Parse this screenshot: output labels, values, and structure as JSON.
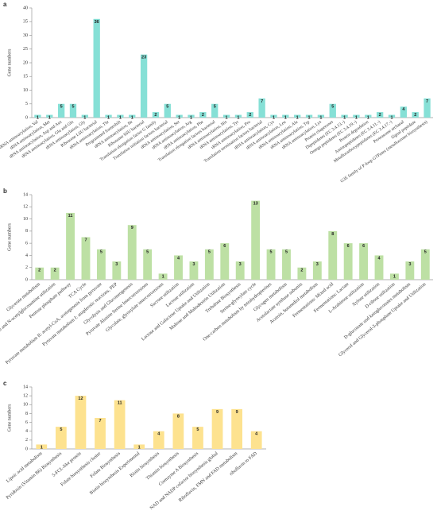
{
  "chart_data": [
    {
      "type": "bar",
      "panel_label": "a",
      "y_label": "Gene numbers",
      "color": "#86e0d6",
      "categories": [
        "tRNA aminoacylation, Val",
        "tRNA aminoacylation, Met",
        "tRNA aminoacylation, Asp and Asn",
        "tRNA aminoacylation, Glu and Gln",
        "tRNA aminoacylation, Gly",
        "Ribosome LSU bacterial",
        "tRNA aminoacylation, Thr",
        "Programmed frameshift",
        "tRNA aminoacylation, Ile",
        "Ribosome SSU bacterial",
        "Translation elongation factor G family",
        "Translation initiation factors bacterial",
        "tRNA aminoacylation, Ser",
        "tRNA aminoacylation, Arg",
        "tRNA aminoacylation, Phe",
        "Translation elongation factors bacterial",
        "tRNA aminoacylation, His",
        "tRNA aminoacylation, Tyr",
        "tRNA aminoacylation, Pro",
        "Translation termination factors bacterial",
        "tRNA aminoacylation, Cys",
        "tRNA aminoacylation, Leu",
        "tRNA aminoacylation, Ala",
        "tRNA aminoacylation, Trp",
        "tRNA aminoacylation, Lys",
        "Protein chaperones",
        "Dipeptidases (EC 3.4.13.-)",
        "Omega peptidases (EC 3.4.19.-)",
        "Protein degradation",
        "Aminopeptidases (EC 3.4.11.-)",
        "Metallocarboxypeptidases (EC 3.4.17.-)",
        "Proteasome archaeal",
        "Signal peptidase",
        "G3E family of P-loop GTPases (metallocenter biosynthesis)"
      ],
      "values": [
        1,
        1,
        5,
        5,
        1,
        36,
        1,
        1,
        1,
        23,
        2,
        5,
        1,
        1,
        2,
        5,
        1,
        1,
        2,
        7,
        1,
        1,
        1,
        1,
        1,
        5,
        1,
        1,
        1,
        2,
        1,
        4,
        2,
        7
      ],
      "ylim": [
        0,
        40
      ],
      "yticks": [
        0,
        5,
        10,
        15,
        20,
        25,
        30,
        35,
        40
      ]
    },
    {
      "type": "bar",
      "panel_label": "b",
      "y_label": "Gene numbers",
      "color": "#bde0a4",
      "categories": [
        "Glycerate metabolism",
        "Chitin and N-acetylglucosamine utilization",
        "Pentose phosphate pathway",
        "TCA Cycle",
        "Pyruvate metabolism II: acetyl-CoA, acetogenesis from pyruvate",
        "Pyruvate metabolism I: anaplerotic reactions, PEP",
        "Glycolysis and Gluconeogenesis",
        "Pyruvate Alanine Serine Interconversions",
        "Glycolate, glyoxylate interconversions",
        "Sucrose utilization",
        "Lactose utilization",
        "Lactose and Galactose Uptake and Utilization",
        "Maltose and Maltodextrin Utilization",
        "Trehalose Biosynthesis",
        "Serine-glyoxylate cycle",
        "One-carbon metabolism by tetrahydropterines",
        "Glycogen metabolism",
        "Acetolactate synthase subunits",
        "Acetoin, butanediol metabolism",
        "Fermentations: Mixed acid",
        "Fermentations: Lactate",
        "L-Arabinose utilization",
        "Xylose utilization",
        "D-ribose utilization",
        "D-gluconate and ketogluconates metabolism",
        "Glycerol and Glycerol-3-phosphate Uptake and Utilization"
      ],
      "values": [
        2,
        2,
        11,
        7,
        5,
        3,
        9,
        5,
        1,
        4,
        3,
        5,
        6,
        3,
        13,
        5,
        5,
        2,
        3,
        8,
        6,
        6,
        4,
        1,
        3,
        5
      ],
      "ylim": [
        0,
        14
      ],
      "yticks": [
        0,
        2,
        4,
        6,
        8,
        10,
        12,
        14
      ]
    },
    {
      "type": "bar",
      "panel_label": "c",
      "y_label": "Gene numbers",
      "color": "#fde28f",
      "categories": [
        "Lipoic acid metabolism",
        "Pyridoxin (Vitamin B6) Biosynthesis",
        "5-FCL-like protein",
        "Folate biosynthesis cluster",
        "Folate Biosynthesis",
        "Biotin biosynthesis Experimental",
        "Biotin biosynthesis",
        "Thiamin biosynthesis",
        "Coenzyme A Biosynthesis",
        "NAD and NADP cofactor biosynthesis global",
        "Riboflavin, FMN and FAD metabolism",
        "riboflavin to FAD"
      ],
      "values": [
        1,
        5,
        12,
        7,
        11,
        1,
        4,
        8,
        5,
        9,
        9,
        4
      ],
      "ylim": [
        0,
        14
      ],
      "yticks": [
        0,
        2,
        4,
        6,
        8,
        10,
        12,
        14
      ]
    }
  ]
}
